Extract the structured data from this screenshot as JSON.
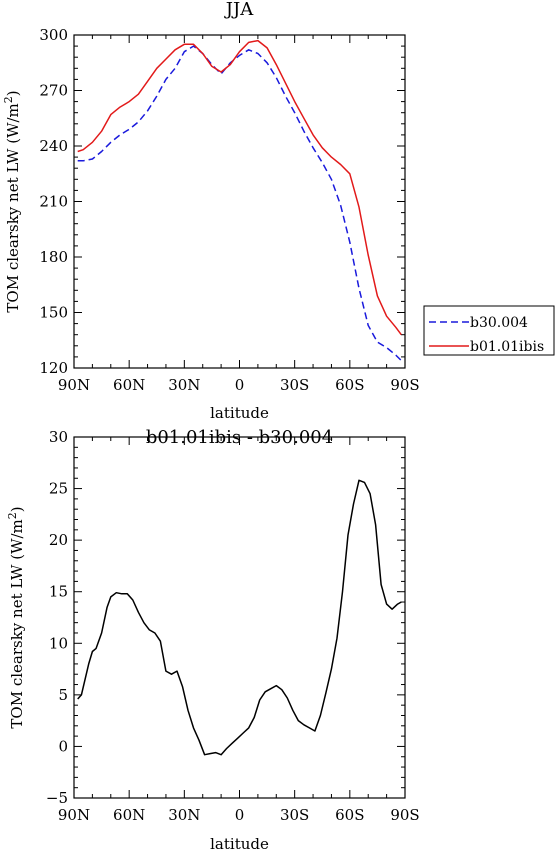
{
  "chart_data": [
    {
      "type": "line",
      "title": "JJA",
      "xlabel": "latitude",
      "ylabel": "TOM clearsky net LW (W/m~S~2~N~)",
      "xlim": [
        90,
        -90
      ],
      "ylim": [
        120,
        300
      ],
      "x_ticks": [
        {
          "value": 90,
          "label": "90N"
        },
        {
          "value": 60,
          "label": "60N"
        },
        {
          "value": 30,
          "label": "30N"
        },
        {
          "value": 0,
          "label": "0"
        },
        {
          "value": -30,
          "label": "30S"
        },
        {
          "value": -60,
          "label": "60S"
        },
        {
          "value": -90,
          "label": "90S"
        }
      ],
      "y_ticks": [
        {
          "value": 120,
          "label": "120"
        },
        {
          "value": 150,
          "label": "150"
        },
        {
          "value": 180,
          "label": "180"
        },
        {
          "value": 210,
          "label": "210"
        },
        {
          "value": 240,
          "label": "240"
        },
        {
          "value": 270,
          "label": "270"
        },
        {
          "value": 300,
          "label": "300"
        }
      ],
      "legend_position": "right",
      "series": [
        {
          "name": "b30.004",
          "color": "#1a1adc",
          "dash": "dashed",
          "x": [
            88,
            85,
            80,
            75,
            70,
            65,
            60,
            55,
            50,
            45,
            40,
            35,
            30,
            25,
            20,
            15,
            10,
            5,
            0,
            -5,
            -10,
            -15,
            -20,
            -25,
            -30,
            -35,
            -40,
            -45,
            -50,
            -55,
            -60,
            -65,
            -70,
            -75,
            -80,
            -85,
            -88
          ],
          "y": [
            232,
            232,
            233,
            237,
            242,
            246,
            249,
            253,
            259,
            267,
            276,
            282,
            291,
            294,
            290,
            284,
            279,
            285,
            289,
            292,
            290,
            285,
            277,
            267,
            258,
            248,
            239,
            231,
            222,
            208,
            188,
            163,
            143,
            134,
            131,
            127,
            124
          ]
        },
        {
          "name": "b01.01ibis",
          "color": "#e21a1a",
          "dash": "solid",
          "x": [
            88,
            85,
            80,
            75,
            70,
            65,
            60,
            55,
            50,
            45,
            40,
            35,
            30,
            25,
            20,
            15,
            10,
            5,
            0,
            -5,
            -10,
            -15,
            -20,
            -25,
            -30,
            -35,
            -40,
            -45,
            -50,
            -55,
            -60,
            -65,
            -70,
            -75,
            -80,
            -85,
            -88
          ],
          "y": [
            237,
            238,
            242,
            248,
            257,
            261,
            264,
            268,
            275,
            282,
            287,
            292,
            295,
            295,
            290,
            283,
            280,
            284,
            291,
            296,
            297,
            293,
            284,
            274,
            264,
            255,
            246,
            239,
            234,
            230,
            225,
            207,
            181,
            159,
            148,
            142,
            138
          ]
        }
      ]
    },
    {
      "type": "line",
      "title": "b01.01ibis - b30.004",
      "xlabel": "latitude",
      "ylabel": "TOM clearsky net LW (W/m~S~2~N~)",
      "xlim": [
        90,
        -90
      ],
      "ylim": [
        -5,
        30
      ],
      "x_ticks": [
        {
          "value": 90,
          "label": "90N"
        },
        {
          "value": 60,
          "label": "60N"
        },
        {
          "value": 30,
          "label": "30N"
        },
        {
          "value": 0,
          "label": "0"
        },
        {
          "value": -30,
          "label": "30S"
        },
        {
          "value": -60,
          "label": "60S"
        },
        {
          "value": -90,
          "label": "90S"
        }
      ],
      "y_ticks": [
        {
          "value": -5,
          "label": "−5"
        },
        {
          "value": 0,
          "label": "0"
        },
        {
          "value": 5,
          "label": "5"
        },
        {
          "value": 10,
          "label": "10"
        },
        {
          "value": 15,
          "label": "15"
        },
        {
          "value": 20,
          "label": "20"
        },
        {
          "value": 25,
          "label": "25"
        },
        {
          "value": 30,
          "label": "30"
        }
      ],
      "series": [
        {
          "name": "",
          "color": "#000000",
          "dash": "solid",
          "x": [
            88,
            86,
            82,
            80,
            78,
            75,
            72,
            70,
            67,
            64,
            61,
            58,
            55,
            52,
            49,
            46,
            43,
            40,
            37,
            34,
            31,
            28,
            25,
            22,
            19,
            16,
            13,
            10,
            7,
            4,
            1,
            -2,
            -5,
            -8,
            -11,
            -14,
            -17,
            -20,
            -23,
            -26,
            -29,
            -32,
            -35,
            -38,
            -41,
            -44,
            -47,
            -50,
            -53,
            -56,
            -59,
            -62,
            -65,
            -68,
            -71,
            -74,
            -77,
            -80,
            -83,
            -86,
            -88
          ],
          "y": [
            4.6,
            5,
            8,
            9.2,
            9.5,
            11,
            13.5,
            14.5,
            14.9,
            14.8,
            14.8,
            14.2,
            13,
            12,
            11.3,
            11,
            10.2,
            7.3,
            7.0,
            7.3,
            5.8,
            3.5,
            1.8,
            0.6,
            -0.8,
            -0.7,
            -0.6,
            -0.8,
            -0.2,
            0.3,
            0.8,
            1.3,
            1.8,
            2.8,
            4.5,
            5.3,
            5.6,
            5.9,
            5.5,
            4.7,
            3.5,
            2.5,
            2.1,
            1.8,
            1.5,
            3,
            5.2,
            7.5,
            10.5,
            15,
            20.5,
            23.5,
            25.8,
            25.6,
            24.5,
            21.5,
            15.7,
            13.8,
            13.3,
            13.8,
            14
          ]
        }
      ]
    }
  ]
}
